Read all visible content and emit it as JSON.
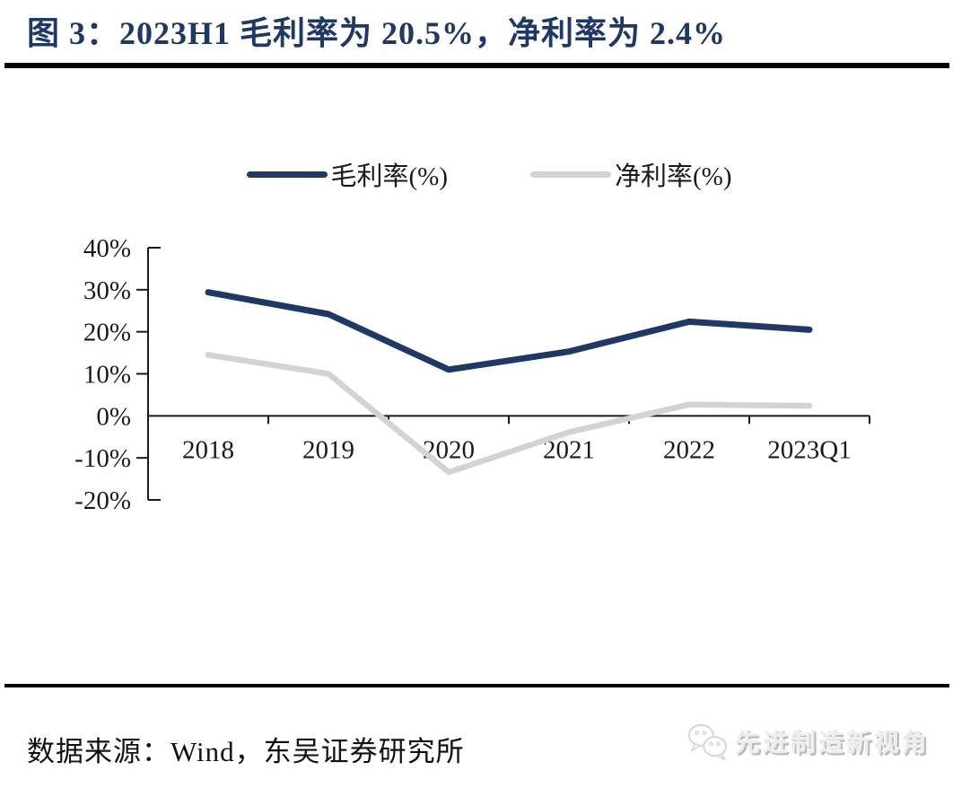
{
  "figure": {
    "title": "图 3：2023H1 毛利率为 20.5%，净利率为 2.4%"
  },
  "legend": {
    "items": [
      {
        "label": "毛利率(%)",
        "key": "gross-margin",
        "color": "#1f3864"
      },
      {
        "label": "净利率(%)",
        "key": "net-margin",
        "color": "#d3d3d3"
      }
    ]
  },
  "chart_data": {
    "type": "line",
    "title": "2023H1 毛利率为 20.5%，净利率为 2.4%",
    "categories": [
      "2018",
      "2019",
      "2020",
      "2021",
      "2022",
      "2023Q1"
    ],
    "series": [
      {
        "name": "毛利率(%)",
        "key": "gross-margin",
        "color": "#1f3864",
        "values": [
          29.4,
          24.2,
          11.0,
          15.3,
          22.4,
          20.5
        ]
      },
      {
        "name": "净利率(%)",
        "key": "net-margin",
        "color": "#d3d3d3",
        "values": [
          14.5,
          10.0,
          -13.4,
          -3.9,
          2.7,
          2.4
        ]
      }
    ],
    "xlabel": "",
    "ylabel": "",
    "ylim": [
      -20,
      40
    ],
    "y_ticks": [
      40,
      30,
      20,
      10,
      0,
      -10,
      -20
    ],
    "y_tick_suffix": "%",
    "grid": false,
    "legend_position": "top",
    "axis_color": "#1a1a1a"
  },
  "footer": {
    "source": "数据来源：Wind，东吴证券研究所",
    "watermark": "先进制造新视角"
  }
}
